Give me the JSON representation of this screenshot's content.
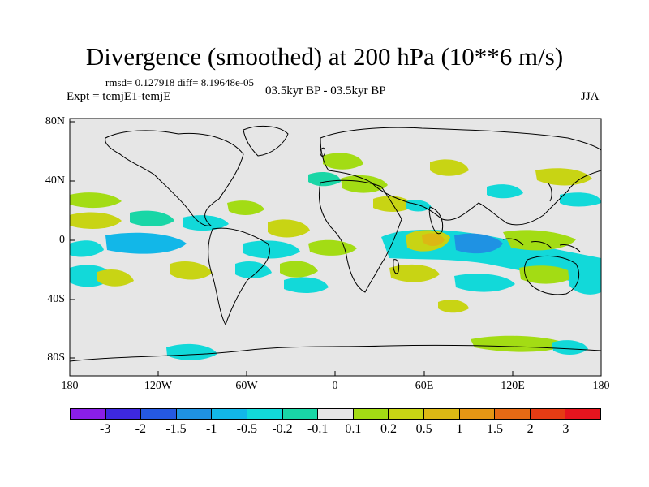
{
  "title": "Divergence (smoothed) at 200 hPa (10**6 m/s)",
  "stats": "rmsd= 0.127918 diff= 8.19648e-05",
  "expt": "Expt = temjE1-temjE",
  "period": "03.5kyr BP - 03.5kyr BP",
  "season": "JJA",
  "x_ticks": [
    "180",
    "120W",
    "60W",
    "0",
    "60E",
    "120E",
    "180"
  ],
  "y_ticks": [
    "80N",
    "40N",
    "0",
    "40S",
    "80S"
  ],
  "colorbar": {
    "colors": [
      "#8a1ee8",
      "#3d28e0",
      "#2559e3",
      "#1f92e3",
      "#12b7e8",
      "#12d9d9",
      "#19d6a6",
      "#e6e6e6",
      "#a3dc14",
      "#c8d414",
      "#dcb814",
      "#e69614",
      "#e66a14",
      "#e63c14",
      "#e6141e"
    ],
    "labels": [
      "-3",
      "-2",
      "-1.5",
      "-1",
      "-0.5",
      "-0.2",
      "-0.1",
      "0.1",
      "0.2",
      "0.5",
      "1",
      "1.5",
      "2",
      "3"
    ]
  },
  "colors": {
    "ocean": "#e6e6e6",
    "frame": "#000000",
    "coast": "#000000"
  }
}
